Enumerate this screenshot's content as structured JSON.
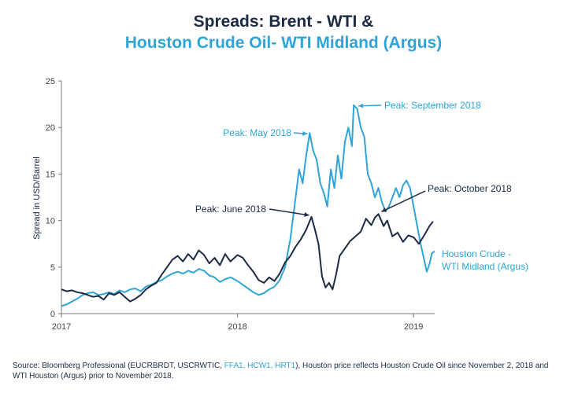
{
  "title": {
    "line1": "Spreads: Brent - WTI &",
    "line2": "Houston Crude Oil- WTI Midland (Argus)"
  },
  "footer": {
    "part1": "Source: Bloomberg Professional (EUCRBRDT, USCRWTIC, ",
    "highlight": "FFA1, HCW1, HRT1",
    "part2": "), Houston price reflects Houston Crude Oil since November 2, 2018 and WTI Houston (Argus) prior to November 2018."
  },
  "colors": {
    "navy": "#1c2a44",
    "light_blue": "#2fa4d6",
    "axis": "#7a7a7a"
  },
  "chart_data": {
    "type": "line",
    "ylabel": "Spread in USD/Barrel",
    "ylim": [
      0,
      25
    ],
    "yticks": [
      "0",
      "5",
      "10",
      "15",
      "20",
      "25"
    ],
    "xlim": [
      2017.0,
      2019.12
    ],
    "xticks": [
      {
        "value": 2017.0,
        "label": "2017"
      },
      {
        "value": 2018.0,
        "label": "2018"
      },
      {
        "value": 2019.0,
        "label": "2019"
      }
    ],
    "grid": false,
    "series": [
      {
        "name": "Brent - WTI",
        "color": "#1c2a44",
        "points": [
          [
            2017.0,
            2.6
          ],
          [
            2017.03,
            2.4
          ],
          [
            2017.06,
            2.5
          ],
          [
            2017.09,
            2.3
          ],
          [
            2017.12,
            2.2
          ],
          [
            2017.15,
            2.0
          ],
          [
            2017.18,
            1.8
          ],
          [
            2017.21,
            1.9
          ],
          [
            2017.24,
            1.5
          ],
          [
            2017.27,
            2.2
          ],
          [
            2017.3,
            2.0
          ],
          [
            2017.33,
            2.3
          ],
          [
            2017.36,
            1.8
          ],
          [
            2017.39,
            1.3
          ],
          [
            2017.42,
            1.6
          ],
          [
            2017.45,
            2.0
          ],
          [
            2017.48,
            2.6
          ],
          [
            2017.51,
            3.0
          ],
          [
            2017.54,
            3.3
          ],
          [
            2017.57,
            4.2
          ],
          [
            2017.6,
            5.0
          ],
          [
            2017.63,
            5.8
          ],
          [
            2017.66,
            6.2
          ],
          [
            2017.69,
            5.6
          ],
          [
            2017.72,
            6.4
          ],
          [
            2017.75,
            5.8
          ],
          [
            2017.78,
            6.8
          ],
          [
            2017.81,
            6.3
          ],
          [
            2017.84,
            5.4
          ],
          [
            2017.87,
            6.0
          ],
          [
            2017.9,
            5.2
          ],
          [
            2017.93,
            6.4
          ],
          [
            2017.96,
            5.6
          ],
          [
            2018.0,
            6.3
          ],
          [
            2018.03,
            6.0
          ],
          [
            2018.06,
            5.2
          ],
          [
            2018.09,
            4.5
          ],
          [
            2018.12,
            3.6
          ],
          [
            2018.15,
            3.3
          ],
          [
            2018.18,
            3.9
          ],
          [
            2018.21,
            3.5
          ],
          [
            2018.24,
            4.3
          ],
          [
            2018.27,
            5.5
          ],
          [
            2018.3,
            6.2
          ],
          [
            2018.33,
            7.2
          ],
          [
            2018.36,
            8.0
          ],
          [
            2018.39,
            9.0
          ],
          [
            2018.42,
            10.4
          ],
          [
            2018.44,
            9.0
          ],
          [
            2018.46,
            7.5
          ],
          [
            2018.48,
            4.0
          ],
          [
            2018.5,
            2.8
          ],
          [
            2018.52,
            3.3
          ],
          [
            2018.54,
            2.6
          ],
          [
            2018.56,
            4.2
          ],
          [
            2018.58,
            6.2
          ],
          [
            2018.61,
            7.0
          ],
          [
            2018.64,
            7.8
          ],
          [
            2018.67,
            8.3
          ],
          [
            2018.7,
            8.8
          ],
          [
            2018.73,
            10.2
          ],
          [
            2018.76,
            9.5
          ],
          [
            2018.78,
            10.3
          ],
          [
            2018.8,
            10.7
          ],
          [
            2018.83,
            9.4
          ],
          [
            2018.85,
            10.0
          ],
          [
            2018.88,
            8.3
          ],
          [
            2018.91,
            8.7
          ],
          [
            2018.94,
            7.7
          ],
          [
            2018.97,
            8.4
          ],
          [
            2019.0,
            8.2
          ],
          [
            2019.03,
            7.5
          ],
          [
            2019.06,
            8.4
          ],
          [
            2019.09,
            9.4
          ],
          [
            2019.11,
            9.9
          ]
        ]
      },
      {
        "name": "Houston Crude - WTI Midland (Argus)",
        "color": "#2fa4d6",
        "points": [
          [
            2017.0,
            0.8
          ],
          [
            2017.03,
            1.0
          ],
          [
            2017.06,
            1.3
          ],
          [
            2017.09,
            1.6
          ],
          [
            2017.12,
            2.0
          ],
          [
            2017.15,
            2.2
          ],
          [
            2017.18,
            2.3
          ],
          [
            2017.21,
            2.0
          ],
          [
            2017.24,
            2.1
          ],
          [
            2017.27,
            2.3
          ],
          [
            2017.3,
            2.1
          ],
          [
            2017.33,
            2.5
          ],
          [
            2017.36,
            2.3
          ],
          [
            2017.39,
            2.6
          ],
          [
            2017.42,
            2.7
          ],
          [
            2017.45,
            2.4
          ],
          [
            2017.48,
            2.9
          ],
          [
            2017.51,
            3.1
          ],
          [
            2017.54,
            3.4
          ],
          [
            2017.57,
            3.6
          ],
          [
            2017.6,
            4.0
          ],
          [
            2017.63,
            4.3
          ],
          [
            2017.66,
            4.5
          ],
          [
            2017.69,
            4.3
          ],
          [
            2017.72,
            4.6
          ],
          [
            2017.75,
            4.4
          ],
          [
            2017.78,
            4.8
          ],
          [
            2017.81,
            4.6
          ],
          [
            2017.84,
            4.1
          ],
          [
            2017.87,
            3.9
          ],
          [
            2017.9,
            3.4
          ],
          [
            2017.93,
            3.7
          ],
          [
            2017.96,
            3.9
          ],
          [
            2018.0,
            3.5
          ],
          [
            2018.03,
            3.1
          ],
          [
            2018.06,
            2.7
          ],
          [
            2018.09,
            2.3
          ],
          [
            2018.12,
            2.0
          ],
          [
            2018.15,
            2.2
          ],
          [
            2018.18,
            2.6
          ],
          [
            2018.21,
            2.9
          ],
          [
            2018.24,
            3.6
          ],
          [
            2018.27,
            5.0
          ],
          [
            2018.3,
            8.0
          ],
          [
            2018.33,
            12.5
          ],
          [
            2018.35,
            15.5
          ],
          [
            2018.37,
            14.0
          ],
          [
            2018.39,
            17.0
          ],
          [
            2018.41,
            19.4
          ],
          [
            2018.43,
            17.5
          ],
          [
            2018.45,
            16.5
          ],
          [
            2018.47,
            14.0
          ],
          [
            2018.49,
            13.0
          ],
          [
            2018.51,
            11.5
          ],
          [
            2018.53,
            15.5
          ],
          [
            2018.55,
            13.5
          ],
          [
            2018.57,
            17.0
          ],
          [
            2018.59,
            14.5
          ],
          [
            2018.61,
            18.5
          ],
          [
            2018.63,
            20.0
          ],
          [
            2018.65,
            18.0
          ],
          [
            2018.66,
            22.4
          ],
          [
            2018.68,
            22.0
          ],
          [
            2018.7,
            20.0
          ],
          [
            2018.72,
            19.0
          ],
          [
            2018.74,
            15.0
          ],
          [
            2018.76,
            14.0
          ],
          [
            2018.78,
            12.5
          ],
          [
            2018.8,
            13.5
          ],
          [
            2018.82,
            12.0
          ],
          [
            2018.84,
            11.0
          ],
          [
            2018.86,
            11.5
          ],
          [
            2018.88,
            12.5
          ],
          [
            2018.9,
            13.5
          ],
          [
            2018.92,
            12.5
          ],
          [
            2018.94,
            13.8
          ],
          [
            2018.96,
            14.3
          ],
          [
            2018.98,
            13.5
          ],
          [
            2019.0,
            11.5
          ],
          [
            2019.02,
            9.5
          ],
          [
            2019.04,
            7.5
          ],
          [
            2019.06,
            5.8
          ],
          [
            2019.075,
            4.5
          ],
          [
            2019.09,
            5.3
          ],
          [
            2019.105,
            6.5
          ],
          [
            2019.12,
            6.7
          ]
        ]
      }
    ],
    "annotations": [
      {
        "name": "peak-may-2018",
        "text": "Peak: May 2018",
        "color": "#2fa4d6",
        "point": [
          2018.41,
          19.4
        ],
        "anchor": "end"
      },
      {
        "name": "peak-september-2018",
        "text": "Peak: September 2018",
        "color": "#2fa4d6",
        "point": [
          2018.66,
          22.4
        ],
        "anchor": "start"
      },
      {
        "name": "peak-june-2018",
        "text": "Peak: June 2018",
        "color": "#1c2a44",
        "point": [
          2018.42,
          10.4
        ],
        "anchor": "end"
      },
      {
        "name": "peak-october-2018",
        "text": "Peak: October 2018",
        "color": "#1c2a44",
        "point": [
          2018.8,
          10.7
        ],
        "anchor": "start"
      }
    ],
    "legend": {
      "text_line1": "Houston Crude -",
      "text_line2": "WTI Midland (Argus)",
      "color": "#2fa4d6",
      "placement": "right"
    }
  }
}
